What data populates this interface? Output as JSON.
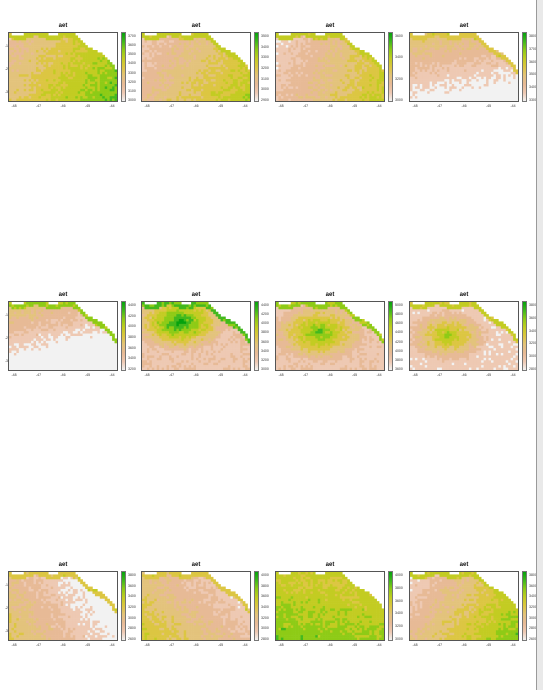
{
  "colors": {
    "ramp": [
      "#f2f2f2",
      "#eec9b3",
      "#e7ba96",
      "#e3c37c",
      "#dcc642",
      "#c3cc22",
      "#8ecb16",
      "#42b81d",
      "#06a20e"
    ],
    "coast": "#8ecb16",
    "sea": "#ffffff"
  },
  "chart_data": [
    {
      "type": "heatmap",
      "title": "aet",
      "x_ticks": [
        "-48",
        "-47",
        "-46",
        "-45",
        "-44"
      ],
      "y_ticks": [
        "-1",
        "-2",
        "-3"
      ],
      "legend_labels": [
        "3700",
        "3600",
        "3500",
        "3400",
        "3300",
        "3200",
        "3100",
        "3000"
      ],
      "pattern": "gradient",
      "dir": [
        0.7,
        0.3
      ],
      "base": 0.25,
      "amp": 0.55,
      "coast": 0.6
    },
    {
      "type": "heatmap",
      "title": "aet",
      "x_ticks": [
        "-48",
        "-47",
        "-46",
        "-45",
        "-44"
      ],
      "y_ticks": [],
      "legend_labels": [
        "3500",
        "3400",
        "3300",
        "3200",
        "3100",
        "3000",
        "2900"
      ],
      "pattern": "gradient",
      "dir": [
        0.6,
        0.3
      ],
      "base": 0.15,
      "amp": 0.55,
      "coast": 0.6
    },
    {
      "type": "heatmap",
      "title": "aet",
      "x_ticks": [
        "-48",
        "-47",
        "-46",
        "-45",
        "-44"
      ],
      "y_ticks": [],
      "legend_labels": [
        "3600",
        "3400",
        "3200",
        "3000"
      ],
      "pattern": "gradient",
      "dir": [
        0.7,
        0.2
      ],
      "base": 0.1,
      "amp": 0.55,
      "coast": 0.6
    },
    {
      "type": "heatmap",
      "title": "aet",
      "x_ticks": [
        "-48",
        "-47",
        "-46",
        "-45",
        "-44"
      ],
      "y_ticks": [],
      "legend_labels": [
        "3800",
        "3700",
        "3600",
        "3500",
        "3400",
        "3300"
      ],
      "pattern": "gradient",
      "dir": [
        -0.2,
        -0.8
      ],
      "base": 0.45,
      "amp": 0.5,
      "coast": 0.5
    },
    {
      "type": "heatmap",
      "title": "aet",
      "x_ticks": [
        "-48",
        "-47",
        "-46",
        "-45",
        "-44"
      ],
      "y_ticks": [
        "-1",
        "-2",
        "-3"
      ],
      "legend_labels": [
        "4400",
        "4200",
        "4000",
        "3800",
        "3600",
        "3400",
        "3200"
      ],
      "pattern": "gradient",
      "dir": [
        -0.3,
        -0.8
      ],
      "base": 0.45,
      "amp": 0.6,
      "coast": 0.7
    },
    {
      "type": "heatmap",
      "title": "aet",
      "x_ticks": [
        "-48",
        "-47",
        "-46",
        "-45",
        "-44"
      ],
      "y_ticks": [],
      "legend_labels": [
        "4400",
        "4200",
        "4000",
        "3800",
        "3600",
        "3400",
        "3200",
        "3000"
      ],
      "pattern": "blob",
      "center": [
        0.35,
        0.3
      ],
      "radius": 0.45,
      "base": 0.2,
      "amp": 0.75,
      "coast": 0.8
    },
    {
      "type": "heatmap",
      "title": "aet",
      "x_ticks": [
        "-48",
        "-47",
        "-46",
        "-45",
        "-44"
      ],
      "y_ticks": [],
      "legend_labels": [
        "5000",
        "4800",
        "4600",
        "4400",
        "4200",
        "4000",
        "3800",
        "3600"
      ],
      "pattern": "blob",
      "center": [
        0.4,
        0.45
      ],
      "radius": 0.45,
      "base": 0.2,
      "amp": 0.6,
      "coast": 0.7
    },
    {
      "type": "heatmap",
      "title": "aet",
      "x_ticks": [
        "-48",
        "-47",
        "-46",
        "-45",
        "-44"
      ],
      "y_ticks": [],
      "legend_labels": [
        "3800",
        "3600",
        "3400",
        "3200",
        "3000",
        "2800"
      ],
      "pattern": "blob",
      "center": [
        0.35,
        0.5
      ],
      "radius": 0.4,
      "base": 0.15,
      "amp": 0.55,
      "coast": 0.6
    },
    {
      "type": "heatmap",
      "title": "aet",
      "x_ticks": [
        "-48",
        "-47",
        "-46",
        "-45",
        "-44"
      ],
      "y_ticks": [
        "-1",
        "-2",
        "-3"
      ],
      "legend_labels": [
        "3800",
        "3600",
        "3400",
        "3200",
        "3000",
        "2800",
        "2600"
      ],
      "pattern": "gradient",
      "dir": [
        -0.7,
        0.3
      ],
      "base": 0.3,
      "amp": 0.6,
      "coast": 0.5
    },
    {
      "type": "heatmap",
      "title": "aet",
      "x_ticks": [
        "-48",
        "-47",
        "-46",
        "-45",
        "-44"
      ],
      "y_ticks": [],
      "legend_labels": [
        "4000",
        "3800",
        "3600",
        "3400",
        "3200",
        "3000",
        "2800"
      ],
      "pattern": "gradient",
      "dir": [
        -0.6,
        0.4
      ],
      "base": 0.35,
      "amp": 0.55,
      "coast": 0.5
    },
    {
      "type": "heatmap",
      "title": "aet",
      "x_ticks": [
        "-48",
        "-47",
        "-46",
        "-45",
        "-44"
      ],
      "y_ticks": [],
      "legend_labels": [
        "4000",
        "3800",
        "3600",
        "3400",
        "3200",
        "3000"
      ],
      "pattern": "gradient",
      "dir": [
        -0.2,
        0.6
      ],
      "base": 0.55,
      "amp": 0.35,
      "coast": 0.6
    },
    {
      "type": "heatmap",
      "title": "aet",
      "x_ticks": [
        "-48",
        "-47",
        "-46",
        "-45",
        "-44"
      ],
      "y_ticks": [],
      "legend_labels": [
        "3800",
        "3600",
        "3400",
        "3200",
        "3000",
        "2800",
        "2600"
      ],
      "pattern": "gradient",
      "dir": [
        0.8,
        0.4
      ],
      "base": 0.1,
      "amp": 0.55,
      "coast": 0.6
    }
  ]
}
